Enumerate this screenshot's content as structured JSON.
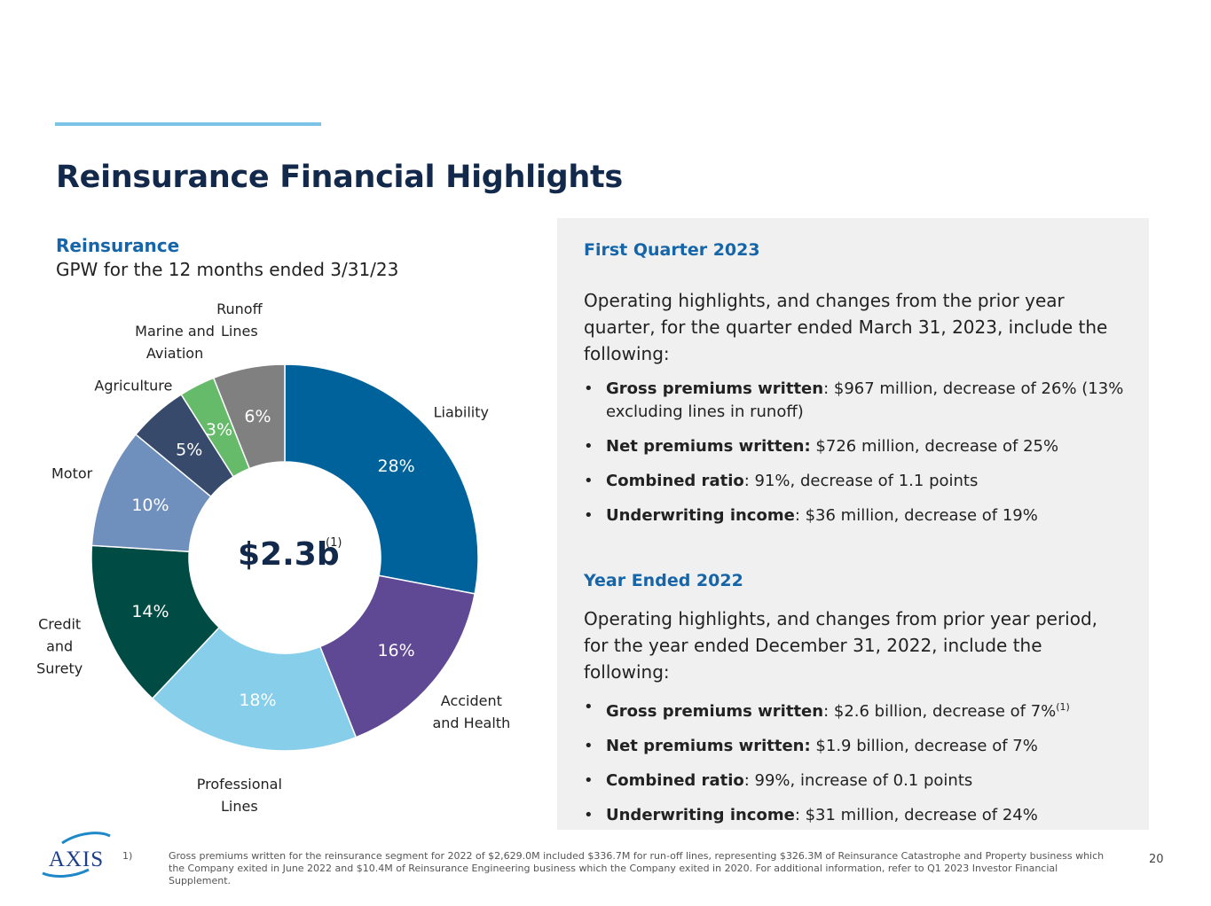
{
  "title": "Reinsurance Financial Highlights",
  "segment": {
    "label": "Reinsurance",
    "subtitle": "GPW for the 12 months ended 3/31/23"
  },
  "chart_data": {
    "type": "pie",
    "style": "donut",
    "title": "GPW for the 12 months ended 3/31/23",
    "center_value": "$2.3b",
    "center_note": "(1)",
    "slices": [
      {
        "category": "Liability",
        "value": 28,
        "label": "28%",
        "color": "#00629b"
      },
      {
        "category": "Accident\nand Health",
        "value": 16,
        "label": "16%",
        "color": "#5f4894"
      },
      {
        "category": "Professional\nLines",
        "value": 18,
        "label": "18%",
        "color": "#87ceeb"
      },
      {
        "category": "Credit\nand\nSurety",
        "value": 14,
        "label": "14%",
        "color": "#004c45"
      },
      {
        "category": "Motor",
        "value": 10,
        "label": "10%",
        "color": "#6f8fbd"
      },
      {
        "category": "Agriculture",
        "value": 5,
        "label": "5%",
        "color": "#374a6b"
      },
      {
        "category": "Marine and\nAviation",
        "value": 3,
        "label": "3%",
        "color": "#66bb6a"
      },
      {
        "category": "Runoff\nLines",
        "value": 6,
        "label": "6%",
        "color": "#808080"
      }
    ]
  },
  "panel": {
    "q1": {
      "heading": "First Quarter 2023",
      "intro": "Operating highlights, and changes from the prior year quarter, for the quarter ended March 31, 2023, include the following:",
      "items": [
        {
          "bold": "Gross premiums written",
          "text": ": $967 million, decrease of 26% (13% excluding lines in runoff)"
        },
        {
          "bold": "Net premiums written:",
          "text": " $726 million, decrease of 25%"
        },
        {
          "bold": "Combined ratio",
          "text": ":  91%, decrease of 1.1 points"
        },
        {
          "bold": "Underwriting income",
          "text": ": $36 million, decrease of 19%"
        }
      ]
    },
    "year": {
      "heading": "Year Ended 2022",
      "intro": "Operating highlights, and changes from prior year period, for the year ended December 31, 2022, include the following:",
      "items": [
        {
          "bold": "Gross premiums written",
          "text": ": $2.6 billion, decrease of 7%",
          "sup": "(1)"
        },
        {
          "bold": "Net premiums written:",
          "text": " $1.9 billion, decrease of 7%"
        },
        {
          "bold": "Combined ratio",
          "text": ":  99%, increase of 0.1 points"
        },
        {
          "bold": "Underwriting income",
          "text": ": $31 million, decrease of 24%"
        }
      ]
    }
  },
  "footer": {
    "logo_text": "AXIS",
    "footnote_number": "1)",
    "footnote": "Gross premiums written for the reinsurance segment for 2022 of $2,629.0M included $336.7M for run-off lines, representing $326.3M of Reinsurance Catastrophe and Property business which the Company exited in June 2022 and $10.4M of Reinsurance Engineering business which the Company exited in 2020. For additional information, refer to Q1 2023 Investor Financial Supplement.",
    "page_number": "20"
  },
  "colors": {
    "title": "#13294b",
    "accent": "#7cc3e8",
    "heading": "#1565a8",
    "panel_bg": "#f0f0f0"
  }
}
